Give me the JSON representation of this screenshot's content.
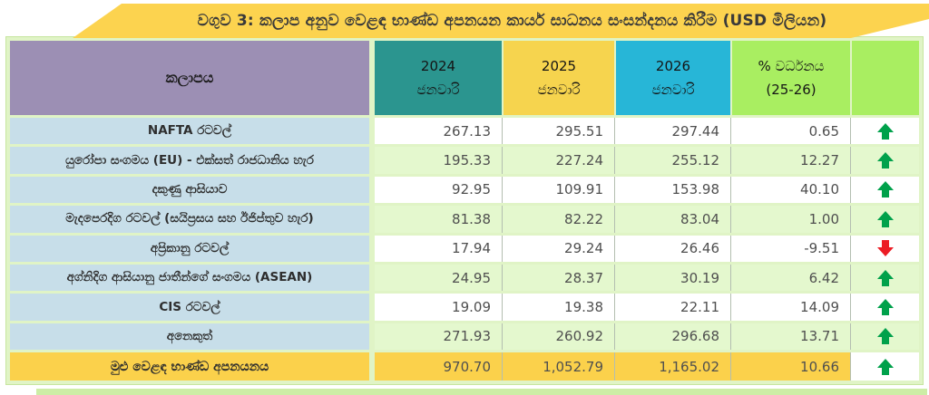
{
  "title": "වගුව 3: කලාප අනුව වෙළඳ භාණ්ඩ අපනයන කාර්ය සාධනය සංසන්දනය කිරීම (USD මිලියන)",
  "header": {
    "region": "කලාපය",
    "y2024": {
      "line1": "2024",
      "line2": "ජනවාරි"
    },
    "y2025": {
      "line1": "2025",
      "line2": "ජනවාරි"
    },
    "y2026": {
      "line1": "2026",
      "line2": "ජනවාරි"
    },
    "growth": {
      "line1": "% වර්ධනය",
      "line2": "(25-26)"
    }
  },
  "table": {
    "rows": [
      {
        "region": "NAFTA රටවල්",
        "v2024": "267.13",
        "v2025": "295.51",
        "v2026": "297.44",
        "growth": "0.65",
        "trend": "up"
      },
      {
        "region": "යුරෝපා සංගමය (EU) - එක්සත් රාජධානිය හැර",
        "v2024": "195.33",
        "v2025": "227.24",
        "v2026": "255.12",
        "growth": "12.27",
        "trend": "up"
      },
      {
        "region": "දකුණු ආසියාව",
        "v2024": "92.95",
        "v2025": "109.91",
        "v2026": "153.98",
        "growth": "40.10",
        "trend": "up"
      },
      {
        "region": "මැදපෙරදිග රටවල් (සයිප්‍රසය සහ ඊජිප්තුව හැර)",
        "v2024": "81.38",
        "v2025": "82.22",
        "v2026": "83.04",
        "growth": "1.00",
        "trend": "up"
      },
      {
        "region": "අප්‍රිකානු රටවල්",
        "v2024": "17.94",
        "v2025": "29.24",
        "v2026": "26.46",
        "growth": "-9.51",
        "trend": "down"
      },
      {
        "region": "අග්නිදිග ආසියානු ජාතීන්ගේ සංගමය (ASEAN)",
        "v2024": "24.95",
        "v2025": "28.37",
        "v2026": "30.19",
        "growth": "6.42",
        "trend": "up"
      },
      {
        "region": "CIS රටවල්",
        "v2024": "19.09",
        "v2025": "19.38",
        "v2026": "22.11",
        "growth": "14.09",
        "trend": "up"
      },
      {
        "region": "අනෙකුත්",
        "v2024": "271.93",
        "v2025": "260.92",
        "v2026": "296.68",
        "growth": "13.71",
        "trend": "up"
      }
    ],
    "total": {
      "region": "මුළු වෙළඳ භාණ්ඩ අපනයනය",
      "v2024": "970.70",
      "v2025": "1,052.79",
      "v2026": "1,165.02",
      "growth": "10.66",
      "trend": "up"
    }
  },
  "chart_data": {
    "type": "table",
    "title": "වගුව 3: කලාප අනුව වෙළඳ භාණ්ඩ අපනයන කාර්ය සාධනය සංසන්දනය කිරීම (USD මිලියන)",
    "columns": [
      "කලාපය",
      "2024 ජනවාරි",
      "2025 ජනවාරි",
      "2026 ජනවාරි",
      "% වර්ධනය (25-26)",
      "trend"
    ],
    "rows": [
      [
        "NAFTA රටවල්",
        267.13,
        295.51,
        297.44,
        0.65,
        "up"
      ],
      [
        "යුරෝපා සංගමය (EU) - එක්සත් රාජධානිය හැර",
        195.33,
        227.24,
        255.12,
        12.27,
        "up"
      ],
      [
        "දකුණු ආසියාව",
        92.95,
        109.91,
        153.98,
        40.1,
        "up"
      ],
      [
        "මැදපෙරදිග රටවල් (සයිප්‍රසය සහ ඊජිප්තුව හැර)",
        81.38,
        82.22,
        83.04,
        1.0,
        "up"
      ],
      [
        "අප්‍රිකානු රටවල්",
        17.94,
        29.24,
        26.46,
        -9.51,
        "down"
      ],
      [
        "අග්නිදිග ආසියානු ජාතීන්ගේ සංගමය (ASEAN)",
        24.95,
        28.37,
        30.19,
        6.42,
        "up"
      ],
      [
        "CIS රටවල්",
        19.09,
        19.38,
        22.11,
        14.09,
        "up"
      ],
      [
        "අනෙකුත්",
        271.93,
        260.92,
        296.68,
        13.71,
        "up"
      ],
      [
        "මුළු වෙළඳ භාණ්ඩ අපනයනය",
        970.7,
        1052.79,
        1165.02,
        10.66,
        "up"
      ]
    ]
  },
  "colors": {
    "banner_yellow": "#FCD34F",
    "header_purple": "#9C8FB4",
    "header_teal": "#2B958F",
    "header_yellow": "#F6D44E",
    "header_cyan": "#27B6D7",
    "header_light_green": "#A9EE61",
    "region_cell_blue": "#C7DEE9",
    "row_alt_green": "#E4F8CE",
    "total_row_gold": "#FBD14B",
    "frame_green": "#E0F4C6",
    "trend_up_green": "#00A14B",
    "trend_down_red": "#EC1C24"
  }
}
